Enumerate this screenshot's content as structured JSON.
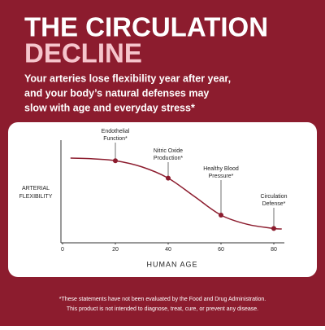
{
  "header": {
    "title_line1": "THE CIRCULATION",
    "title_line2": "DECLINE",
    "subtitle": [
      "Your arteries lose flexibility year after year,",
      "and your body’s natural defenses may",
      "slow with age and everyday stress*"
    ]
  },
  "chart_data": {
    "type": "line",
    "color": "#8c1c2e",
    "x_label": "HUMAN AGE",
    "y_label": [
      "ARTERIAL",
      "FLEXIBILITY"
    ],
    "x": [
      3,
      10,
      20,
      30,
      40,
      50,
      60,
      70,
      80,
      83
    ],
    "values": [
      82.5,
      82,
      80,
      74,
      63,
      45,
      27,
      18,
      14,
      13.5
    ],
    "xlim": [
      0,
      84
    ],
    "ylim": [
      0,
      100
    ],
    "xticks": [
      0,
      20,
      40,
      60,
      80
    ],
    "points": {
      "x": [
        20,
        40,
        60,
        80
      ],
      "values": [
        80,
        63,
        27,
        14
      ],
      "labels": [
        [
          "Endothelial",
          "Function*"
        ],
        [
          "Nitric Oxide",
          "Production*"
        ],
        [
          "Healthy Blood",
          "Pressure*"
        ],
        [
          "Circulation",
          "Defense*"
        ]
      ]
    }
  },
  "footnote": [
    "*These statements have not been evaluated by the Food and Drug Administration.",
    "This product is not intended to diagnose, treat, cure, or prevent any disease."
  ]
}
